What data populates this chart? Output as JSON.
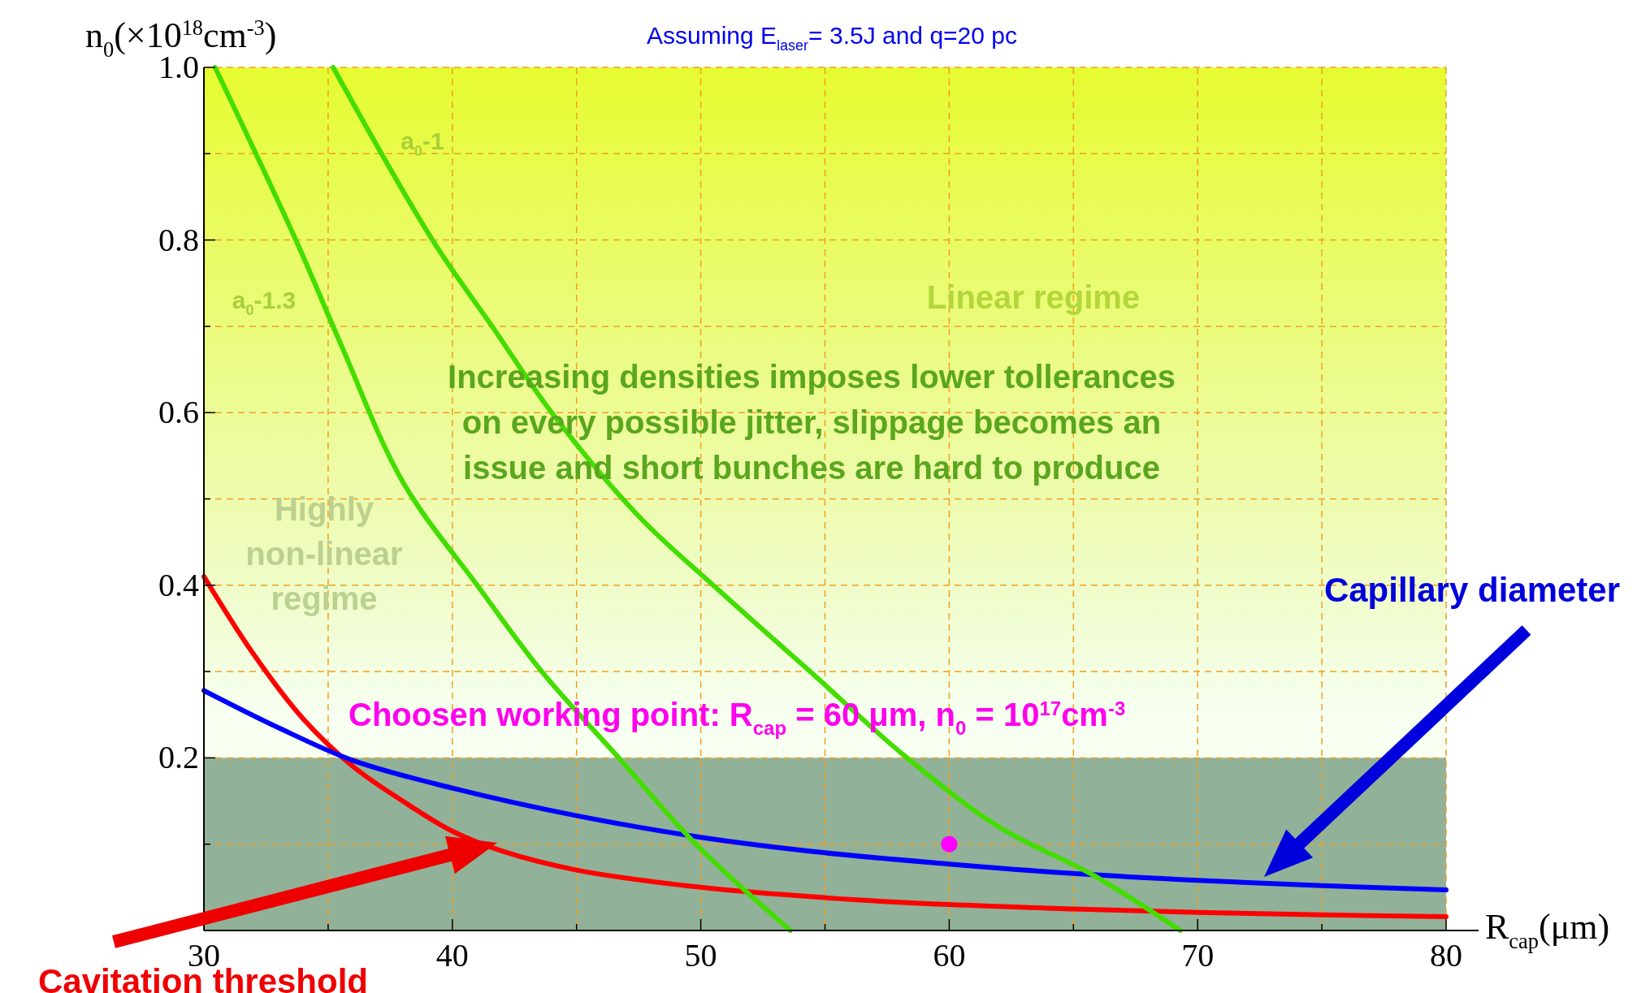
{
  "chart_data": {
    "type": "line",
    "title": "Assuming E$_{laser}$= 3.5J and q=20 pc",
    "xlabel": "R$_{cap}$(μm)",
    "ylabel": "n$_{0}$(×10$^{18}$cm$^{-3}$)",
    "xlim": [
      30,
      80
    ],
    "ylim": [
      0,
      1
    ],
    "xticks": [
      30,
      {
        "value": 35,
        "label": null
      },
      40,
      {
        "value": 45,
        "label": null
      },
      50,
      {
        "value": 55,
        "label": null
      },
      60,
      {
        "value": 65,
        "label": null
      },
      70,
      {
        "value": 75,
        "label": null
      },
      80
    ],
    "yticks": [
      {
        "value": 0,
        "label": null
      },
      {
        "value": 0.1,
        "label": null
      },
      0.2,
      {
        "value": 0.3,
        "label": null
      },
      0.4,
      {
        "value": 0.5,
        "label": null
      },
      0.6,
      {
        "value": 0.7,
        "label": null
      },
      0.8,
      {
        "value": 0.9,
        "label": null
      },
      {
        "value": 1,
        "label": "1.0"
      }
    ],
    "grid": true,
    "bands": [
      {
        "axis": "y",
        "from": 0,
        "to": 0.2,
        "color": "#7fa488"
      }
    ],
    "series": [
      {
        "color": "#ff0000",
        "x": [
          30,
          32,
          34,
          36,
          38,
          40,
          42,
          45,
          50,
          55,
          60,
          65,
          70,
          75,
          80
        ],
        "values": [
          0.41,
          0.32,
          0.245,
          0.19,
          0.15,
          0.115,
          0.092,
          0.07,
          0.05,
          0.038,
          0.03,
          0.025,
          0.021,
          0.018,
          0.016
        ]
      },
      {
        "color": "#0000ff",
        "x": [
          30,
          33,
          36,
          40,
          45,
          50,
          55,
          60,
          65,
          70,
          75,
          80
        ],
        "values": [
          0.278,
          0.235,
          0.197,
          0.165,
          0.133,
          0.108,
          0.09,
          0.077,
          0.066,
          0.058,
          0.052,
          0.047
        ]
      },
      {
        "name": "a$_{0}$-1",
        "color": "#44dd00",
        "x": [
          35.2,
          39.2,
          41.6,
          44,
          47.5,
          50.5,
          54.4,
          58.3,
          62,
          65.8,
          69.3
        ],
        "values": [
          1,
          0.8,
          0.7,
          0.6,
          0.48,
          0.4,
          0.3,
          0.2,
          0.12,
          0.064,
          0
        ]
      },
      {
        "name": "a$_{0}$-1.3",
        "color": "#44dd00",
        "x": [
          30.45,
          33.7,
          35.5,
          38,
          41,
          43.6,
          46.7,
          49.8,
          53.6
        ],
        "values": [
          1,
          0.8,
          0.68,
          0.52,
          0.4,
          0.3,
          0.2,
          0.1,
          0
        ]
      },
      {
        "type": "scatter",
        "marker": "circle",
        "color": "#ff00ff",
        "x": [
          60
        ],
        "values": [
          0.1
        ]
      }
    ],
    "marker": "none",
    "annotations": [
      "Linear regime",
      "Increasing densities imposes lower tollerances\non every possible jitter, slippage becomes an\nissue and short bunches are hard to produce",
      "Highly\nnon-linear\nregime",
      "Capillary diameter",
      "Cavitation threshold",
      "Choosen working point: R$_{cap}$ = 60 μm, n$_{0}$ = 10$^{17}$cm$^{-3}$"
    ]
  }
}
